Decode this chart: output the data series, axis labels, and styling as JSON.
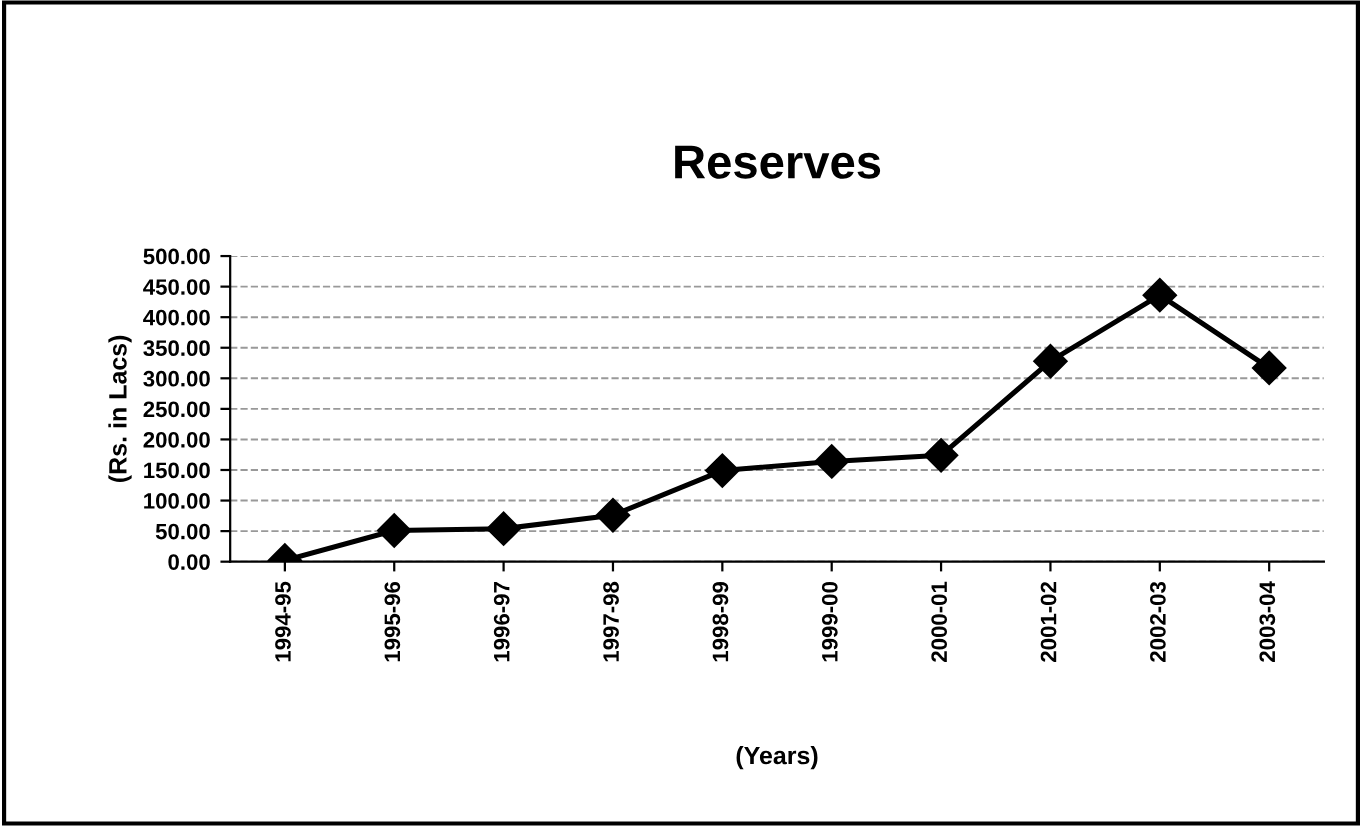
{
  "chart_data": {
    "type": "line",
    "title": "Reserves",
    "xlabel": "(Years)",
    "ylabel": "(Rs. in Lacs)",
    "categories": [
      "1994-95",
      "1995-96",
      "1996-97",
      "1997-98",
      "1998-99",
      "1999-00",
      "2000-01",
      "2001-02",
      "2002-03",
      "2003-04"
    ],
    "series": [
      {
        "color": "#000000",
        "values": [
          2,
          51,
          54,
          76,
          149,
          164,
          174,
          328,
          436,
          317
        ]
      }
    ],
    "ylim": [
      0,
      500
    ],
    "yticks": [
      {
        "value": 0,
        "label": "0.00"
      },
      {
        "value": 50,
        "label": "50.00"
      },
      {
        "value": 100,
        "label": "100.00"
      },
      {
        "value": 150,
        "label": "150.00"
      },
      {
        "value": 200,
        "label": "200.00"
      },
      {
        "value": 250,
        "label": "250.00"
      },
      {
        "value": 300,
        "label": "300.00"
      },
      {
        "value": 350,
        "label": "350.00"
      },
      {
        "value": 400,
        "label": "400.00"
      },
      {
        "value": 450,
        "label": "450.00"
      },
      {
        "value": 500,
        "label": "500.00"
      }
    ],
    "grid": "y",
    "marker": "diamond",
    "line_style": "solid"
  }
}
